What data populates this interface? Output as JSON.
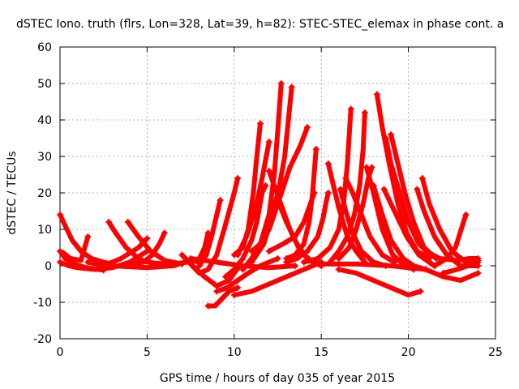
{
  "chart_data": {
    "type": "scatter",
    "title": "dSTEC Iono. truth (flrs, Lon=328, Lat=39, h=82): STEC-STEC_elemax in phase cont. a",
    "xlabel": "GPS time / hours of day 035 of year 2015",
    "ylabel": "dSTEC  / TECUs",
    "xlim": [
      0,
      25
    ],
    "ylim": [
      -20,
      60
    ],
    "xticks": [
      0,
      5,
      10,
      15,
      20,
      25
    ],
    "yticks": [
      -20,
      -10,
      0,
      10,
      20,
      30,
      40,
      50,
      60
    ],
    "xtick_labels": [
      "0",
      "5",
      "10",
      "15",
      "20",
      "25"
    ],
    "ytick_labels": [
      "-20",
      "-10",
      "0",
      "10",
      "20",
      "30",
      "40",
      "50",
      "60"
    ],
    "grid": true,
    "marker": "plus",
    "color": "#ff0000",
    "series": [
      {
        "name": "s1",
        "points": [
          [
            0.0,
            14
          ],
          [
            0.3,
            11
          ],
          [
            0.7,
            7
          ],
          [
            1.2,
            4
          ],
          [
            1.8,
            2
          ],
          [
            2.5,
            1
          ],
          [
            3.0,
            0.5
          ]
        ]
      },
      {
        "name": "s2",
        "points": [
          [
            0.0,
            4
          ],
          [
            0.3,
            2
          ],
          [
            0.8,
            0.5
          ],
          [
            1.5,
            -0.5
          ],
          [
            2.5,
            -1.2
          ]
        ]
      },
      {
        "name": "s3",
        "points": [
          [
            0.2,
            3.5
          ],
          [
            0.6,
            2
          ],
          [
            1.2,
            1.5
          ],
          [
            1.6,
            8
          ]
        ]
      },
      {
        "name": "s4",
        "points": [
          [
            0.0,
            1
          ],
          [
            0.5,
            0
          ],
          [
            1.0,
            -0.5
          ],
          [
            2.0,
            -1
          ],
          [
            3.0,
            -0.5
          ],
          [
            4.0,
            1
          ],
          [
            5.0,
            4
          ]
        ]
      },
      {
        "name": "s5",
        "points": [
          [
            2.8,
            12
          ],
          [
            3.2,
            9
          ],
          [
            3.8,
            5
          ],
          [
            4.5,
            2
          ],
          [
            5.0,
            1
          ],
          [
            6.0,
            0.5
          ]
        ]
      },
      {
        "name": "s6",
        "points": [
          [
            3.9,
            12
          ],
          [
            4.5,
            8
          ],
          [
            5.2,
            4
          ],
          [
            6.0,
            1.5
          ],
          [
            7.0,
            0.5
          ]
        ]
      },
      {
        "name": "s7",
        "points": [
          [
            1.6,
            1
          ],
          [
            2.5,
            0
          ],
          [
            3.5,
            2
          ],
          [
            4.5,
            5
          ],
          [
            5.0,
            7.5
          ]
        ]
      },
      {
        "name": "s8",
        "points": [
          [
            6.0,
            9
          ],
          [
            5.7,
            6
          ],
          [
            5.3,
            3
          ],
          [
            4.8,
            1
          ],
          [
            4.0,
            0.5
          ]
        ]
      },
      {
        "name": "s9",
        "points": [
          [
            3.0,
            0
          ],
          [
            5.0,
            -0.5
          ],
          [
            6.5,
            0
          ],
          [
            7.5,
            1.5
          ],
          [
            8.0,
            1
          ]
        ]
      },
      {
        "name": "s10",
        "points": [
          [
            7.0,
            3
          ],
          [
            7.6,
            0
          ],
          [
            8.3,
            -3
          ],
          [
            9.0,
            -5.5
          ],
          [
            9.7,
            -4
          ],
          [
            10.3,
            0
          ]
        ]
      },
      {
        "name": "s11",
        "points": [
          [
            7.5,
            0.5
          ],
          [
            8.0,
            -2
          ],
          [
            8.5,
            -1
          ],
          [
            9.0,
            3
          ],
          [
            9.3,
            8
          ],
          [
            9.6,
            13
          ],
          [
            10.0,
            20
          ],
          [
            10.2,
            24
          ]
        ]
      },
      {
        "name": "s12",
        "points": [
          [
            8.0,
            0
          ],
          [
            8.4,
            3
          ],
          [
            8.7,
            8
          ],
          [
            9.0,
            14
          ],
          [
            9.2,
            18
          ]
        ]
      },
      {
        "name": "s13",
        "points": [
          [
            6.5,
            0.5
          ],
          [
            7.3,
            1
          ],
          [
            8.0,
            2
          ],
          [
            8.3,
            5
          ],
          [
            8.5,
            9
          ]
        ]
      },
      {
        "name": "s14",
        "points": [
          [
            8.5,
            -11
          ],
          [
            8.9,
            -11
          ],
          [
            9.3,
            -9
          ],
          [
            9.7,
            -7
          ],
          [
            10.2,
            -6
          ]
        ]
      },
      {
        "name": "s15",
        "points": [
          [
            9.0,
            -7
          ],
          [
            9.6,
            -6
          ],
          [
            10.2,
            -4
          ],
          [
            10.8,
            -2
          ],
          [
            11.5,
            0
          ],
          [
            12.5,
            2
          ]
        ]
      },
      {
        "name": "s16",
        "points": [
          [
            9.5,
            -3
          ],
          [
            10.0,
            -1
          ],
          [
            10.5,
            2
          ],
          [
            11.0,
            7
          ],
          [
            11.3,
            12
          ],
          [
            11.6,
            20
          ],
          [
            11.8,
            22
          ]
        ]
      },
      {
        "name": "s17",
        "points": [
          [
            10.0,
            3
          ],
          [
            10.5,
            5
          ],
          [
            10.8,
            10
          ],
          [
            11.1,
            20
          ],
          [
            11.3,
            30
          ],
          [
            11.5,
            39
          ]
        ]
      },
      {
        "name": "s18",
        "points": [
          [
            10.5,
            -1
          ],
          [
            11.0,
            2
          ],
          [
            11.5,
            6
          ],
          [
            12.0,
            14
          ],
          [
            12.3,
            25
          ],
          [
            12.5,
            37
          ],
          [
            12.7,
            50
          ]
        ]
      },
      {
        "name": "s19",
        "points": [
          [
            10.2,
            3
          ],
          [
            10.7,
            8
          ],
          [
            11.2,
            15
          ],
          [
            11.6,
            24
          ],
          [
            12.0,
            34
          ]
        ]
      },
      {
        "name": "s20",
        "points": [
          [
            11.0,
            1
          ],
          [
            11.7,
            6
          ],
          [
            12.2,
            14
          ],
          [
            12.6,
            22
          ],
          [
            12.9,
            30
          ],
          [
            13.3,
            49
          ]
        ]
      },
      {
        "name": "s21",
        "points": [
          [
            10.0,
            -8
          ],
          [
            11.0,
            -7
          ],
          [
            12.0,
            -5
          ],
          [
            13.0,
            -3
          ],
          [
            14.0,
            -1
          ],
          [
            15.0,
            1
          ]
        ]
      },
      {
        "name": "s22",
        "points": [
          [
            11.0,
            4
          ],
          [
            11.5,
            6
          ],
          [
            12.0,
            10
          ],
          [
            12.5,
            17
          ],
          [
            13.2,
            27
          ],
          [
            13.8,
            33
          ],
          [
            14.2,
            38
          ]
        ]
      },
      {
        "name": "s23",
        "points": [
          [
            12.0,
            26
          ],
          [
            12.6,
            18
          ],
          [
            13.2,
            10
          ],
          [
            13.8,
            4
          ],
          [
            14.5,
            1
          ],
          [
            15.0,
            0
          ]
        ]
      },
      {
        "name": "s24",
        "points": [
          [
            12.5,
            18
          ],
          [
            13.0,
            12
          ],
          [
            13.6,
            6
          ],
          [
            14.2,
            2
          ],
          [
            15.0,
            0
          ]
        ]
      },
      {
        "name": "s25",
        "points": [
          [
            12.0,
            4
          ],
          [
            12.8,
            6
          ],
          [
            13.5,
            8
          ],
          [
            14.0,
            12
          ],
          [
            14.3,
            16
          ],
          [
            14.6,
            20
          ]
        ]
      },
      {
        "name": "s26",
        "points": [
          [
            13.0,
            2
          ],
          [
            13.5,
            3
          ],
          [
            14.0,
            6
          ],
          [
            14.3,
            12
          ],
          [
            14.5,
            20
          ],
          [
            14.7,
            32
          ]
        ]
      },
      {
        "name": "s27",
        "points": [
          [
            13.0,
            1
          ],
          [
            13.6,
            2
          ],
          [
            14.2,
            4
          ],
          [
            14.8,
            8
          ],
          [
            15.1,
            13
          ],
          [
            15.3,
            18
          ],
          [
            15.4,
            20
          ]
        ]
      },
      {
        "name": "s28",
        "points": [
          [
            15.4,
            28
          ],
          [
            15.7,
            22
          ],
          [
            16.0,
            16
          ],
          [
            16.5,
            8
          ],
          [
            17.0,
            4
          ],
          [
            17.5,
            1
          ]
        ]
      },
      {
        "name": "s29",
        "points": [
          [
            16.1,
            21
          ],
          [
            16.4,
            15
          ],
          [
            16.8,
            9
          ],
          [
            17.3,
            4
          ],
          [
            18.0,
            1
          ],
          [
            18.7,
            0
          ]
        ]
      },
      {
        "name": "s30",
        "points": [
          [
            14.0,
            1
          ],
          [
            14.8,
            2
          ],
          [
            15.5,
            5
          ],
          [
            16.0,
            10
          ],
          [
            16.3,
            18
          ],
          [
            16.5,
            28
          ],
          [
            16.7,
            43
          ]
        ]
      },
      {
        "name": "s31",
        "points": [
          [
            15.5,
            1
          ],
          [
            16.0,
            4
          ],
          [
            16.5,
            8
          ],
          [
            16.9,
            14
          ],
          [
            17.2,
            22
          ],
          [
            17.4,
            32
          ],
          [
            17.5,
            42
          ]
        ]
      },
      {
        "name": "s32",
        "points": [
          [
            16.0,
            2
          ],
          [
            16.6,
            5
          ],
          [
            17.0,
            10
          ],
          [
            17.4,
            17
          ],
          [
            17.7,
            24
          ],
          [
            17.9,
            27
          ]
        ]
      },
      {
        "name": "s33",
        "points": [
          [
            16.4,
            24
          ],
          [
            16.8,
            20
          ],
          [
            17.3,
            14
          ],
          [
            17.8,
            8
          ],
          [
            18.5,
            3
          ],
          [
            19.2,
            1
          ]
        ]
      },
      {
        "name": "s34",
        "points": [
          [
            17.6,
            27
          ],
          [
            18.0,
            20
          ],
          [
            18.5,
            10
          ],
          [
            19.1,
            3
          ],
          [
            19.8,
            0
          ],
          [
            20.3,
            -1
          ]
        ]
      },
      {
        "name": "s35",
        "points": [
          [
            18.0,
            22
          ],
          [
            18.5,
            14
          ],
          [
            19.0,
            7
          ],
          [
            19.7,
            2
          ],
          [
            20.3,
            0
          ],
          [
            21.0,
            -1
          ]
        ]
      },
      {
        "name": "s36",
        "points": [
          [
            18.2,
            47
          ],
          [
            18.5,
            38
          ],
          [
            18.9,
            28
          ],
          [
            19.4,
            17
          ],
          [
            19.9,
            9
          ],
          [
            20.5,
            4
          ],
          [
            21.2,
            2
          ]
        ]
      },
      {
        "name": "s37",
        "points": [
          [
            18.7,
            35
          ],
          [
            19.0,
            28
          ],
          [
            19.5,
            20
          ],
          [
            20.0,
            12
          ],
          [
            20.6,
            6
          ],
          [
            21.3,
            3
          ]
        ]
      },
      {
        "name": "s38",
        "points": [
          [
            19.0,
            36
          ],
          [
            19.4,
            28
          ],
          [
            19.8,
            20
          ],
          [
            20.3,
            12
          ],
          [
            20.9,
            5
          ],
          [
            21.6,
            2
          ]
        ]
      },
      {
        "name": "s39",
        "points": [
          [
            18.6,
            21
          ],
          [
            19.3,
            14
          ],
          [
            19.9,
            8
          ],
          [
            20.6,
            3
          ],
          [
            21.5,
            0
          ]
        ]
      },
      {
        "name": "s40",
        "points": [
          [
            16.0,
            -1
          ],
          [
            17.0,
            -2
          ],
          [
            18.0,
            -4
          ],
          [
            19.0,
            -6
          ],
          [
            20.0,
            -8
          ],
          [
            20.7,
            -7
          ]
        ]
      },
      {
        "name": "s41",
        "points": [
          [
            15.0,
            0.5
          ],
          [
            17.0,
            0.5
          ],
          [
            19.0,
            0
          ],
          [
            21.0,
            -1
          ],
          [
            22.0,
            -3
          ],
          [
            23.0,
            -4
          ],
          [
            24.0,
            -2
          ]
        ]
      },
      {
        "name": "s42",
        "points": [
          [
            20.5,
            21
          ],
          [
            20.9,
            15
          ],
          [
            21.5,
            8
          ],
          [
            22.2,
            3
          ],
          [
            23.0,
            0
          ],
          [
            24.0,
            0
          ]
        ]
      },
      {
        "name": "s43",
        "points": [
          [
            20.8,
            24
          ],
          [
            21.2,
            17
          ],
          [
            21.8,
            10
          ],
          [
            22.5,
            4
          ],
          [
            23.3,
            1
          ],
          [
            24.0,
            1
          ]
        ]
      },
      {
        "name": "s44",
        "points": [
          [
            21.5,
            0
          ],
          [
            22.2,
            2
          ],
          [
            22.7,
            5
          ],
          [
            23.1,
            11
          ],
          [
            23.3,
            14
          ]
        ]
      },
      {
        "name": "s45",
        "points": [
          [
            22.0,
            -2
          ],
          [
            22.8,
            -1
          ],
          [
            23.4,
            0
          ],
          [
            23.9,
            1
          ],
          [
            24.0,
            1.5
          ]
        ]
      },
      {
        "name": "s46",
        "points": [
          [
            7.5,
            2
          ],
          [
            9.0,
            1
          ],
          [
            10.5,
            0
          ],
          [
            12.0,
            -0.5
          ],
          [
            13.5,
            0
          ]
        ]
      },
      {
        "name": "s47",
        "points": [
          [
            21.0,
            4
          ],
          [
            21.8,
            2
          ],
          [
            22.8,
            1.5
          ],
          [
            23.5,
            2
          ],
          [
            24.0,
            2
          ]
        ]
      }
    ]
  }
}
